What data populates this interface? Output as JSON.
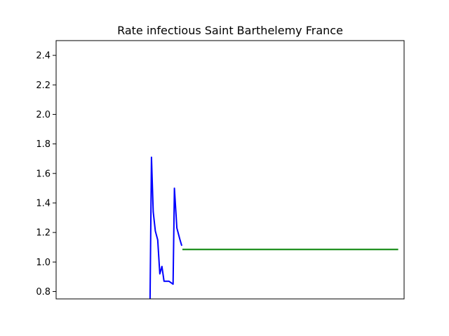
{
  "chart_data": {
    "type": "line",
    "title": "Rate infectious Saint Barthelemy France",
    "xlabel": "",
    "ylabel": "",
    "ylim": [
      0.75,
      2.5
    ],
    "xlim": [
      0,
      100
    ],
    "yticks": [
      "0.8",
      "1.0",
      "1.2",
      "1.4",
      "1.6",
      "1.8",
      "2.0",
      "2.2",
      "2.4"
    ],
    "xticks_visible": false,
    "grid": false,
    "series": [
      {
        "color": "#0000ff",
        "points": [
          [
            27.0,
            0.75
          ],
          [
            27.4,
            1.71
          ],
          [
            27.9,
            1.34
          ],
          [
            28.5,
            1.21
          ],
          [
            29.2,
            1.15
          ],
          [
            29.8,
            0.92
          ],
          [
            30.4,
            0.97
          ],
          [
            31.0,
            0.87
          ],
          [
            32.4,
            0.87
          ],
          [
            33.6,
            0.85
          ],
          [
            34.0,
            1.5
          ],
          [
            34.7,
            1.23
          ],
          [
            35.6,
            1.15
          ],
          [
            36.1,
            1.11
          ]
        ]
      },
      {
        "color": "#008000",
        "points": [
          [
            36.3,
            1.085
          ],
          [
            98.3,
            1.085
          ]
        ]
      }
    ]
  }
}
